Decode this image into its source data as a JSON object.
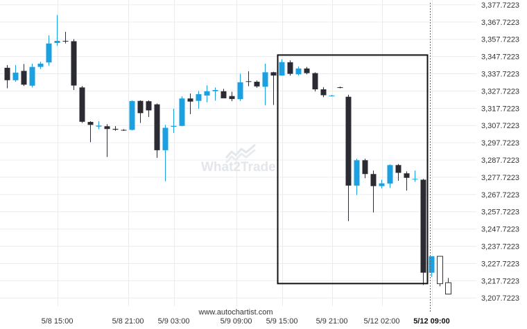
{
  "chart_data": {
    "type": "candlestick",
    "x_tick_labels": [
      "5/8 15:00",
      "5/8 21:00",
      "5/9 03:00",
      "5/9 09:00",
      "5/9 15:00",
      "5/9 21:00",
      "5/12 02:00",
      "5/12 09:00"
    ],
    "x_tick_bold_index": 7,
    "y_tick_labels": [
      "3,377.7223",
      "3,367.7223",
      "3,357.7223",
      "3,347.7223",
      "3,337.7223",
      "3,327.7223",
      "3,317.7223",
      "3,307.7223",
      "3,297.7223",
      "3,287.7223",
      "3,277.7223",
      "3,267.7223",
      "3,257.7223",
      "3,247.7223",
      "3,237.7223",
      "3,227.7223",
      "3,217.7223",
      "3,207.7223"
    ],
    "ylim": [
      3203.0,
      3380.5
    ],
    "grid": true,
    "colors": {
      "up": "#1ba1e2",
      "down": "#2b2b33",
      "grid": "#e9ecef",
      "pattern_box": "#111111",
      "forecast": "#333333"
    },
    "candles": [
      [
        3341.2,
        3342.8,
        3329.3,
        3334.0
      ],
      [
        3334.0,
        3342.8,
        3333.1,
        3338.4
      ],
      [
        3339.4,
        3343.4,
        3330.6,
        3331.4
      ],
      [
        3330.8,
        3343.6,
        3329.8,
        3341.7
      ],
      [
        3341.7,
        3344.7,
        3340.5,
        3343.6
      ],
      [
        3344.3,
        3360.0,
        3342.4,
        3355.3
      ],
      [
        3355.6,
        3371.8,
        3353.9,
        3356.8
      ],
      [
        3356.8,
        3362.1,
        3355.3,
        3356.6
      ],
      [
        3356.6,
        3357.8,
        3328.3,
        3330.9
      ],
      [
        3329.8,
        3330.6,
        3309.2,
        3309.9
      ],
      [
        3309.8,
        3310.2,
        3298.0,
        3308.1
      ],
      [
        3307.1,
        3310.2,
        3305.5,
        3307.7
      ],
      [
        3307.3,
        3308.5,
        3289.5,
        3305.7
      ],
      [
        3305.8,
        3307.4,
        3304.7,
        3305.3
      ],
      [
        3305.2,
        3305.6,
        3304.6,
        3304.9
      ],
      [
        3305.2,
        3322.3,
        3304.9,
        3321.9
      ],
      [
        3322.0,
        3322.3,
        3309.2,
        3314.9
      ],
      [
        3321.8,
        3322.3,
        3312.7,
        3316.5
      ],
      [
        3320.0,
        3320.5,
        3289.0,
        3293.4
      ],
      [
        3293.4,
        3308.1,
        3275.4,
        3306.4
      ],
      [
        3307.0,
        3317.5,
        3303.4,
        3307.5
      ],
      [
        3307.5,
        3324.7,
        3307.3,
        3323.4
      ],
      [
        3323.4,
        3326.3,
        3314.3,
        3321.6
      ],
      [
        3322.0,
        3327.8,
        3317.4,
        3325.9
      ],
      [
        3325.1,
        3331.0,
        3321.2,
        3327.6
      ],
      [
        3327.6,
        3329.8,
        3322.1,
        3328.3
      ],
      [
        3327.6,
        3329.0,
        3324.0,
        3323.5
      ],
      [
        3324.8,
        3327.3,
        3321.8,
        3323.1
      ],
      [
        3323.0,
        3337.8,
        3321.9,
        3332.8
      ],
      [
        3333.4,
        3339.2,
        3330.5,
        3333.1
      ],
      [
        3333.1,
        3333.8,
        3329.6,
        3330.4
      ],
      [
        3330.2,
        3343.6,
        3319.5,
        3338.6
      ],
      [
        3338.6,
        3338.9,
        3319.6,
        3336.7
      ],
      [
        3336.7,
        3346.2,
        3336.6,
        3344.5
      ],
      [
        3344.4,
        3345.5,
        3336.7,
        3337.7
      ],
      [
        3337.4,
        3341.9,
        3336.7,
        3340.8
      ],
      [
        3340.8,
        3341.7,
        3337.4,
        3338.1
      ],
      [
        3338.1,
        3338.6,
        3327.5,
        3328.7
      ],
      [
        3328.7,
        3330.0,
        3324.2,
        3325.3
      ],
      [
        3325.0,
        3325.5,
        3324.6,
        3325.1
      ],
      [
        3329.9,
        3330.3,
        3329.3,
        3329.6
      ],
      [
        3324.4,
        3325.6,
        3252.3,
        3272.9
      ],
      [
        3272.9,
        3288.5,
        3267.4,
        3287.6
      ],
      [
        3287.6,
        3288.5,
        3277.2,
        3279.6
      ],
      [
        3279.6,
        3281.6,
        3257.3,
        3272.6
      ],
      [
        3272.6,
        3276.3,
        3271.2,
        3274.2
      ],
      [
        3274.1,
        3285.2,
        3271.5,
        3284.8
      ],
      [
        3284.8,
        3285.4,
        3275.7,
        3280.3
      ],
      [
        3280.0,
        3281.1,
        3270.0,
        3277.4
      ],
      [
        3276.8,
        3281.6,
        3275.1,
        3276.8
      ],
      [
        3276.3,
        3276.8,
        3215.3,
        3222.4
      ],
      [
        3222.4,
        3231.9,
        3219.9,
        3231.9
      ]
    ],
    "forecast_candles": [
      [
        3231.9,
        3231.9,
        3214.5,
        3216.0
      ],
      [
        3216.6,
        3219.3,
        3209.8,
        3210.0
      ]
    ],
    "pattern_box": {
      "x_start": 32.5,
      "x_end": 50.5,
      "y_top": 3348.6,
      "y_bottom": 3216.1
    },
    "current_time_index": 50.8
  },
  "watermark": {
    "text": "What2Trade"
  },
  "source": {
    "text": "www.autochartist.com"
  }
}
